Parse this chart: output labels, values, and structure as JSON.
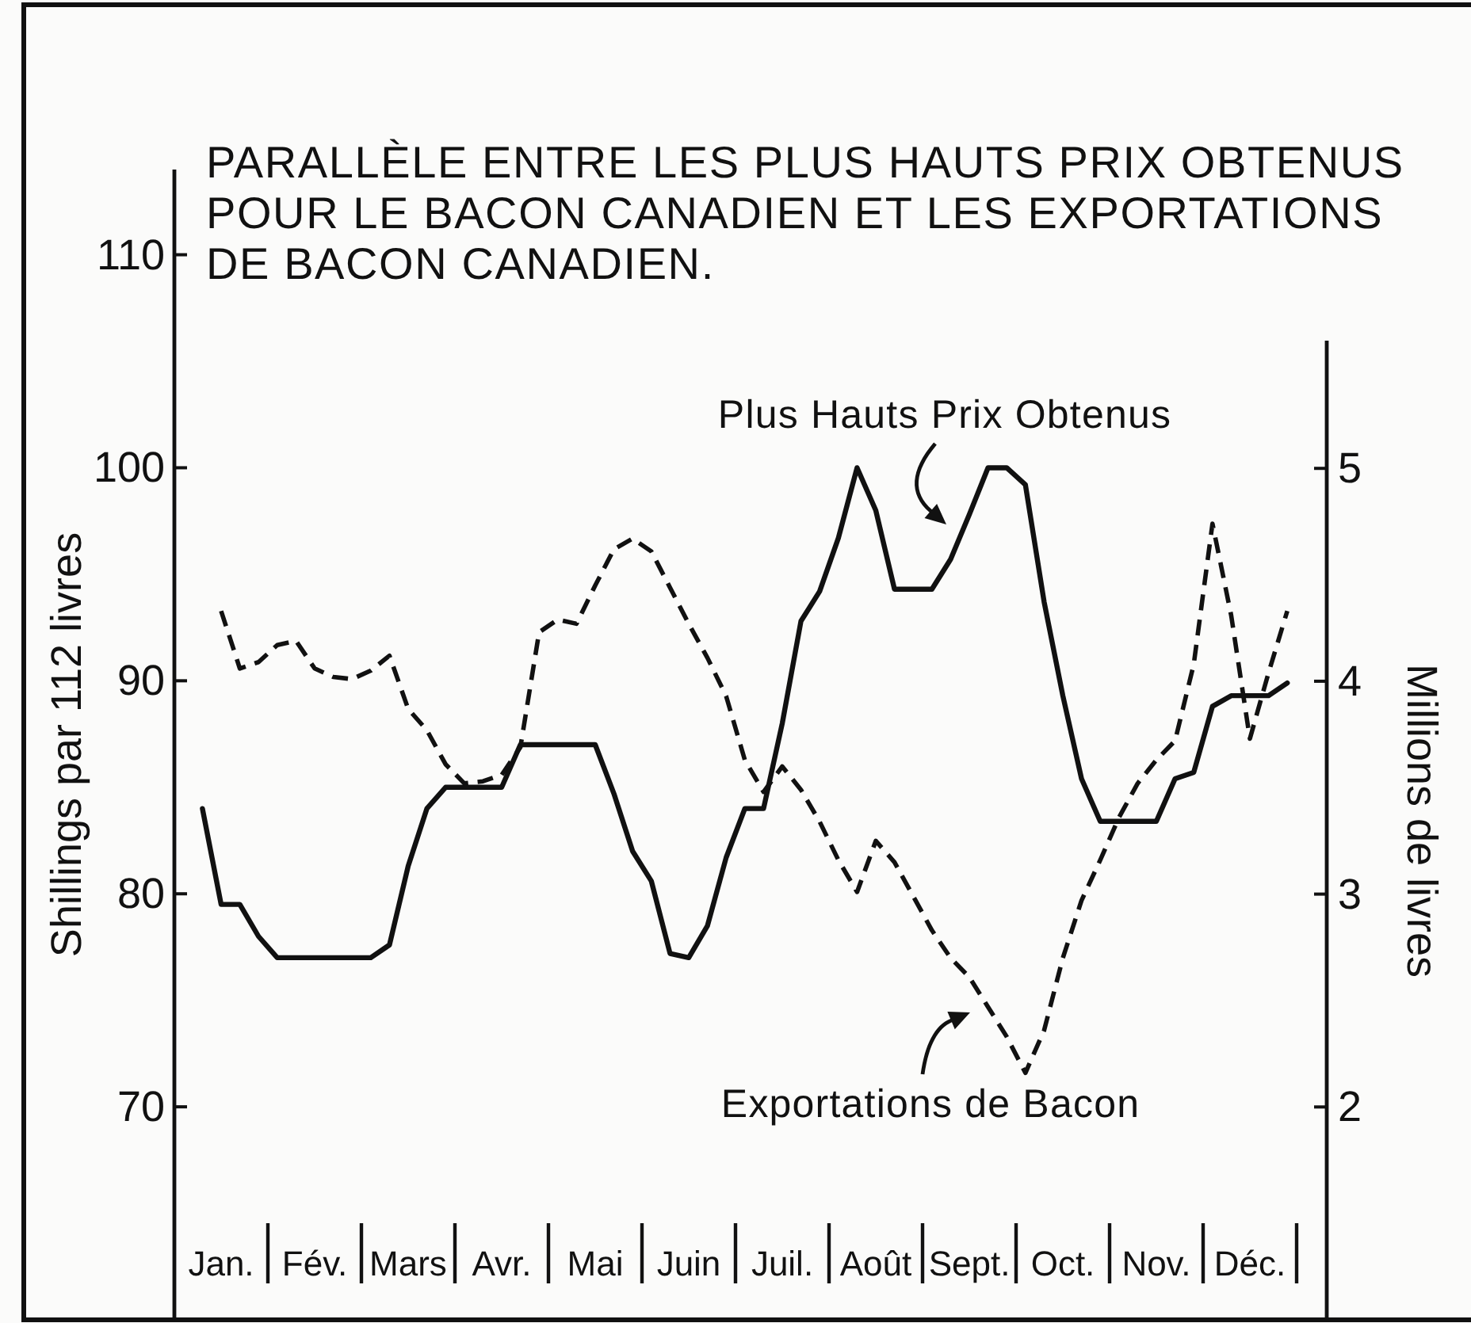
{
  "chart_data": {
    "type": "line",
    "title": "PARALLÈLE ENTRE LES PLUS HAUTS PRIX OBTENUS POUR LE BACON CANADIEN ET LES EXPORTATIONS DE BACON CANADIEN.",
    "ylabel": "Shillings par 112 livres",
    "y2label": "Millions de livres",
    "categories": [
      null,
      null,
      "Jan.",
      null,
      null,
      null,
      null,
      "Fév.",
      null,
      null,
      null,
      null,
      "Mars",
      null,
      null,
      null,
      null,
      "Avr.",
      null,
      null,
      null,
      null,
      "Mai",
      null,
      null,
      null,
      null,
      "Juin",
      null,
      null,
      null,
      null,
      "Juil.",
      null,
      null,
      null,
      null,
      "Août",
      null,
      null,
      null,
      null,
      "Sept.",
      null,
      null,
      null,
      null,
      "Oct.",
      null,
      null,
      null,
      null,
      "Nov.",
      null,
      null,
      null,
      null,
      "Déc.",
      null,
      null
    ],
    "ylim": [
      60,
      114
    ],
    "yticks": [
      70,
      80,
      90,
      100,
      110
    ],
    "y2lim": [
      1,
      5.6
    ],
    "y2ticks": [
      2,
      3,
      4,
      5
    ],
    "series": [
      {
        "name": "Plus Hauts Prix Obtenus",
        "color": "#111111",
        "line_style": "solid",
        "values": [
          null,
          84,
          79.5,
          79.5,
          78.0,
          77,
          77,
          77,
          77,
          77,
          77,
          77.6,
          81.3,
          84.0,
          85,
          85,
          85,
          85,
          87,
          87,
          87,
          87,
          87,
          84.7,
          82,
          80.6,
          77.2,
          77,
          78.5,
          81.7,
          84,
          84,
          88.0,
          92.8,
          94.2,
          96.7,
          100,
          98.0,
          94.3,
          94.3,
          94.3,
          95.7,
          97.8,
          100,
          100,
          99.2,
          93.7,
          89.3,
          85.4,
          83.4,
          83.4,
          83.4,
          83.4,
          85.4,
          85.7,
          88.8,
          89.3,
          89.3,
          89.3,
          89.9
        ]
      },
      {
        "name": "Exportations de Bacon",
        "color": "#111111",
        "line_style": "dashed",
        "axis": "y2",
        "values": [
          null,
          null,
          4.33,
          4.06,
          4.09,
          4.17,
          4.19,
          4.06,
          4.02,
          4.01,
          4.05,
          4.12,
          3.87,
          3.77,
          3.61,
          3.52,
          3.53,
          3.56,
          3.69,
          4.23,
          4.29,
          4.27,
          4.45,
          4.62,
          4.67,
          4.61,
          4.44,
          4.27,
          4.11,
          3.93,
          3.63,
          3.48,
          3.6,
          3.49,
          3.34,
          3.16,
          3.01,
          3.25,
          3.15,
          2.99,
          2.83,
          2.7,
          2.61,
          2.47,
          2.33,
          2.16,
          2.36,
          2.7,
          2.97,
          3.16,
          3.36,
          3.52,
          3.63,
          3.72,
          4.08,
          4.74,
          4.31,
          3.73,
          4.04,
          4.33
        ]
      }
    ]
  }
}
